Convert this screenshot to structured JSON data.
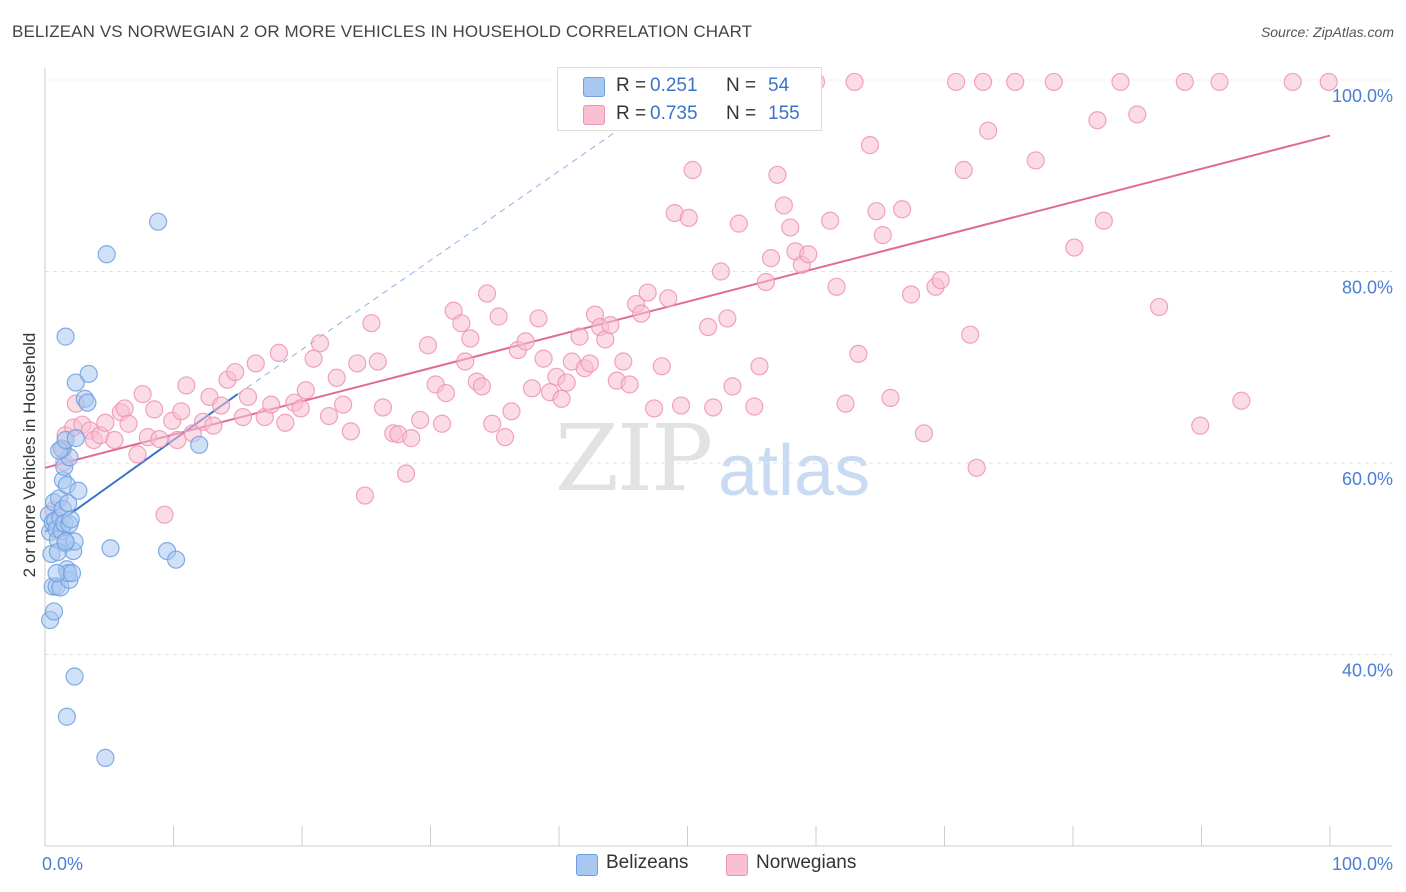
{
  "title": "BELIZEAN VS NORWEGIAN 2 OR MORE VEHICLES IN HOUSEHOLD CORRELATION CHART",
  "source": "Source: ZipAtlas.com",
  "watermark": {
    "zip": "ZIP",
    "atlas": "atlas"
  },
  "legend": {
    "rows": [
      {
        "r_label": "R =",
        "r_value": "0.251",
        "n_label": "N =",
        "n_value": "54",
        "color": "#a9c8f0",
        "border": "#6f9fe0"
      },
      {
        "r_label": "R =",
        "r_value": "0.735",
        "n_label": "N =",
        "n_value": "155",
        "color": "#f8c0d2",
        "border": "#ee93b1"
      }
    ]
  },
  "bottom_legend": [
    {
      "label": "Belizeans",
      "color": "#a9c8f0",
      "border": "#6f9fe0"
    },
    {
      "label": "Norwegians",
      "color": "#f8c0d2",
      "border": "#ee93b1"
    }
  ],
  "chart_data": {
    "type": "scatter",
    "title": "BELIZEAN VS NORWEGIAN 2 OR MORE VEHICLES IN HOUSEHOLD CORRELATION CHART",
    "xlabel": "",
    "ylabel": "2 or more Vehicles in Household",
    "xlim": [
      0,
      100
    ],
    "ylim": [
      20,
      101
    ],
    "x_tick_labels": [
      {
        "value": 0,
        "label": "0.0%"
      },
      {
        "value": 100,
        "label": "100.0%"
      }
    ],
    "y_tick_labels": [
      {
        "value": 40,
        "label": "40.0%"
      },
      {
        "value": 60,
        "label": "60.0%"
      },
      {
        "value": 80,
        "label": "80.0%"
      },
      {
        "value": 100,
        "label": "100.0%"
      }
    ],
    "grid": true,
    "series": [
      {
        "name": "Belizeans",
        "color": "#6f9fe0",
        "fill": "#a9c8f0",
        "trend": {
          "x0": 0,
          "y0": 52.8,
          "x1": 15,
          "y1": 67.2,
          "color": "#3b73c8"
        },
        "trend_extension": {
          "x0": 15,
          "y0": 67.2,
          "x1": 47,
          "y1": 97,
          "dashed": true
        },
        "points": [
          [
            0.3,
            54.6
          ],
          [
            0.4,
            52.8
          ],
          [
            0.5,
            50.5
          ],
          [
            0.6,
            53.8
          ],
          [
            0.7,
            55.9
          ],
          [
            0.8,
            54.0
          ],
          [
            0.9,
            53.1
          ],
          [
            1.0,
            52.0
          ],
          [
            1.1,
            56.3
          ],
          [
            1.2,
            54.3
          ],
          [
            1.3,
            52.9
          ],
          [
            1.4,
            55.2
          ],
          [
            1.5,
            53.7
          ],
          [
            1.6,
            51.6
          ],
          [
            1.7,
            48.9
          ],
          [
            1.8,
            55.8
          ],
          [
            1.9,
            53.6
          ],
          [
            2.0,
            54.1
          ],
          [
            1.4,
            58.2
          ],
          [
            1.5,
            59.6
          ],
          [
            1.7,
            57.7
          ],
          [
            1.9,
            60.6
          ],
          [
            1.3,
            61.5
          ],
          [
            1.1,
            61.3
          ],
          [
            1.6,
            62.4
          ],
          [
            0.4,
            43.6
          ],
          [
            0.7,
            44.5
          ],
          [
            0.6,
            47.1
          ],
          [
            0.9,
            47.1
          ],
          [
            1.2,
            47.0
          ],
          [
            1.9,
            47.8
          ],
          [
            1.8,
            48.5
          ],
          [
            0.9,
            48.5
          ],
          [
            2.1,
            48.5
          ],
          [
            2.2,
            50.8
          ],
          [
            2.3,
            51.8
          ],
          [
            1.0,
            50.7
          ],
          [
            1.6,
            51.8
          ],
          [
            2.6,
            57.1
          ],
          [
            2.4,
            62.6
          ],
          [
            2.4,
            68.4
          ],
          [
            3.1,
            66.7
          ],
          [
            3.4,
            69.3
          ],
          [
            3.3,
            66.3
          ],
          [
            1.6,
            73.2
          ],
          [
            4.8,
            81.8
          ],
          [
            8.8,
            85.2
          ],
          [
            2.3,
            37.7
          ],
          [
            1.7,
            33.5
          ],
          [
            4.7,
            29.2
          ],
          [
            5.1,
            51.1
          ],
          [
            9.5,
            50.8
          ],
          [
            10.2,
            49.9
          ],
          [
            12.0,
            61.9
          ]
        ]
      },
      {
        "name": "Norwegians",
        "color": "#ee93b1",
        "fill": "#f8c0d2",
        "trend": {
          "x0": 0,
          "y0": 59.5,
          "x1": 100,
          "y1": 94.2,
          "color": "#e06b94"
        },
        "points": [
          [
            0.7,
            55.1
          ],
          [
            1.4,
            61.4
          ],
          [
            1.6,
            62.9
          ],
          [
            1.5,
            60.1
          ],
          [
            2.2,
            63.7
          ],
          [
            2.4,
            66.2
          ],
          [
            2.9,
            64.0
          ],
          [
            3.5,
            63.4
          ],
          [
            3.8,
            62.4
          ],
          [
            4.3,
            62.9
          ],
          [
            4.7,
            64.2
          ],
          [
            5.4,
            62.4
          ],
          [
            5.9,
            65.3
          ],
          [
            6.2,
            65.7
          ],
          [
            6.5,
            64.1
          ],
          [
            7.2,
            60.9
          ],
          [
            7.6,
            67.2
          ],
          [
            8.0,
            62.7
          ],
          [
            8.5,
            65.6
          ],
          [
            8.9,
            62.5
          ],
          [
            9.3,
            54.6
          ],
          [
            9.9,
            64.4
          ],
          [
            10.3,
            62.4
          ],
          [
            10.6,
            65.4
          ],
          [
            11.0,
            68.1
          ],
          [
            11.5,
            63.1
          ],
          [
            12.3,
            64.3
          ],
          [
            12.8,
            66.9
          ],
          [
            13.1,
            63.9
          ],
          [
            13.7,
            66.0
          ],
          [
            14.2,
            68.7
          ],
          [
            14.8,
            69.5
          ],
          [
            15.4,
            64.8
          ],
          [
            15.8,
            66.9
          ],
          [
            16.4,
            70.4
          ],
          [
            17.1,
            64.8
          ],
          [
            17.6,
            66.1
          ],
          [
            18.2,
            71.5
          ],
          [
            18.7,
            64.2
          ],
          [
            19.4,
            66.3
          ],
          [
            19.9,
            65.7
          ],
          [
            20.3,
            67.6
          ],
          [
            20.9,
            70.9
          ],
          [
            21.4,
            72.5
          ],
          [
            22.1,
            64.9
          ],
          [
            22.7,
            68.9
          ],
          [
            23.2,
            66.1
          ],
          [
            23.8,
            63.3
          ],
          [
            24.3,
            70.4
          ],
          [
            24.9,
            56.6
          ],
          [
            25.4,
            74.6
          ],
          [
            25.9,
            70.6
          ],
          [
            26.3,
            65.8
          ],
          [
            27.1,
            63.1
          ],
          [
            27.5,
            63.0
          ],
          [
            28.1,
            58.9
          ],
          [
            28.5,
            62.6
          ],
          [
            29.2,
            64.5
          ],
          [
            29.8,
            72.3
          ],
          [
            30.4,
            68.2
          ],
          [
            30.9,
            64.1
          ],
          [
            31.2,
            67.3
          ],
          [
            31.8,
            75.9
          ],
          [
            32.4,
            74.6
          ],
          [
            32.7,
            70.6
          ],
          [
            33.1,
            73.0
          ],
          [
            33.6,
            68.5
          ],
          [
            34.0,
            68.0
          ],
          [
            34.4,
            77.7
          ],
          [
            34.8,
            64.1
          ],
          [
            35.3,
            75.3
          ],
          [
            35.8,
            62.7
          ],
          [
            36.3,
            65.4
          ],
          [
            36.8,
            71.8
          ],
          [
            37.4,
            72.7
          ],
          [
            37.9,
            67.8
          ],
          [
            38.4,
            75.1
          ],
          [
            38.8,
            70.9
          ],
          [
            39.3,
            67.4
          ],
          [
            39.8,
            69.0
          ],
          [
            40.2,
            66.7
          ],
          [
            40.6,
            68.4
          ],
          [
            41.0,
            70.6
          ],
          [
            41.6,
            73.2
          ],
          [
            42.0,
            69.9
          ],
          [
            42.4,
            70.4
          ],
          [
            42.8,
            75.5
          ],
          [
            43.2,
            74.2
          ],
          [
            43.6,
            72.9
          ],
          [
            44.0,
            74.4
          ],
          [
            44.5,
            68.6
          ],
          [
            45.0,
            70.6
          ],
          [
            45.5,
            68.2
          ],
          [
            46.0,
            76.6
          ],
          [
            46.4,
            75.6
          ],
          [
            46.9,
            77.8
          ],
          [
            47.4,
            65.7
          ],
          [
            48.0,
            70.1
          ],
          [
            48.5,
            77.2
          ],
          [
            49.0,
            86.1
          ],
          [
            49.5,
            66.0
          ],
          [
            50.1,
            85.6
          ],
          [
            50.4,
            90.6
          ],
          [
            51.6,
            74.2
          ],
          [
            52.0,
            65.8
          ],
          [
            52.6,
            80.0
          ],
          [
            53.1,
            75.1
          ],
          [
            53.5,
            68.0
          ],
          [
            54.0,
            85.0
          ],
          [
            55.2,
            65.9
          ],
          [
            55.6,
            70.1
          ],
          [
            56.1,
            78.9
          ],
          [
            56.5,
            81.4
          ],
          [
            57.0,
            90.1
          ],
          [
            57.5,
            86.9
          ],
          [
            58.0,
            84.6
          ],
          [
            58.4,
            82.1
          ],
          [
            58.9,
            80.7
          ],
          [
            59.4,
            81.8
          ],
          [
            60.0,
            99.8
          ],
          [
            61.1,
            85.3
          ],
          [
            61.6,
            78.4
          ],
          [
            62.3,
            66.2
          ],
          [
            63.0,
            99.8
          ],
          [
            63.3,
            71.4
          ],
          [
            64.2,
            93.2
          ],
          [
            64.7,
            86.3
          ],
          [
            65.2,
            83.8
          ],
          [
            65.8,
            66.8
          ],
          [
            66.7,
            86.5
          ],
          [
            67.4,
            77.6
          ],
          [
            68.4,
            63.1
          ],
          [
            69.3,
            78.4
          ],
          [
            69.7,
            79.1
          ],
          [
            70.9,
            99.8
          ],
          [
            71.5,
            90.6
          ],
          [
            72.0,
            73.4
          ],
          [
            72.5,
            59.5
          ],
          [
            73.0,
            99.8
          ],
          [
            73.4,
            94.7
          ],
          [
            75.5,
            99.8
          ],
          [
            77.1,
            91.6
          ],
          [
            78.5,
            99.8
          ],
          [
            80.1,
            82.5
          ],
          [
            81.9,
            95.8
          ],
          [
            82.4,
            85.3
          ],
          [
            83.7,
            99.8
          ],
          [
            85.0,
            96.4
          ],
          [
            86.7,
            76.3
          ],
          [
            88.7,
            99.8
          ],
          [
            89.9,
            63.9
          ],
          [
            91.4,
            99.8
          ],
          [
            93.1,
            66.5
          ],
          [
            97.1,
            99.8
          ],
          [
            99.9,
            99.8
          ]
        ]
      }
    ]
  }
}
